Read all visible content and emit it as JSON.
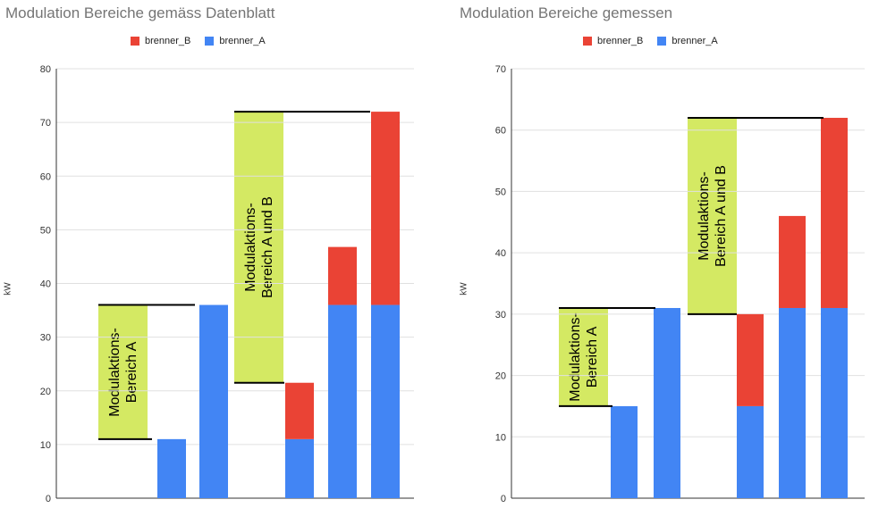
{
  "colors": {
    "brenner_A": "#4285f4",
    "brenner_B": "#ea4335",
    "annotation": "#d4e963",
    "grid": "#e0e0e0"
  },
  "chart_data": [
    {
      "type": "bar",
      "stacked": true,
      "title": "Modulation Bereiche gemäss Datenblatt",
      "ylabel": "kW",
      "ylim": [
        0,
        80
      ],
      "yticks": [
        "0",
        "10",
        "20",
        "30",
        "40",
        "50",
        "60",
        "70",
        "80"
      ],
      "legend": [
        "brenner_B",
        "brenner_A"
      ],
      "legend_position": "top",
      "grid": true,
      "series": [
        {
          "name": "brenner_A",
          "values": [
            0,
            11,
            36,
            0,
            11,
            36,
            36
          ]
        },
        {
          "name": "brenner_B",
          "values": [
            0,
            0,
            0,
            0,
            10.5,
            10.8,
            36
          ]
        }
      ],
      "annotations": [
        {
          "text": "Modulaktions-\nBereich A",
          "from": 11,
          "to": 36
        },
        {
          "text": "Modulaktions-\nBereich A und B",
          "from": 21.5,
          "to": 72
        }
      ]
    },
    {
      "type": "bar",
      "stacked": true,
      "title": "Modulation Bereiche gemessen",
      "ylabel": "kW",
      "ylim": [
        0,
        70
      ],
      "yticks": [
        "0",
        "10",
        "20",
        "30",
        "40",
        "50",
        "60",
        "70"
      ],
      "legend": [
        "brenner_B",
        "brenner_A"
      ],
      "legend_position": "top",
      "grid": true,
      "series": [
        {
          "name": "brenner_A",
          "values": [
            0,
            15,
            31,
            0,
            15,
            31,
            31
          ]
        },
        {
          "name": "brenner_B",
          "values": [
            0,
            0,
            0,
            0,
            15,
            15,
            31
          ]
        }
      ],
      "annotations": [
        {
          "text": "Modulaktions-\nBereich A",
          "from": 15,
          "to": 31
        },
        {
          "text": "Modulaktions-\nBereich A und B",
          "from": 30,
          "to": 62
        }
      ]
    }
  ]
}
